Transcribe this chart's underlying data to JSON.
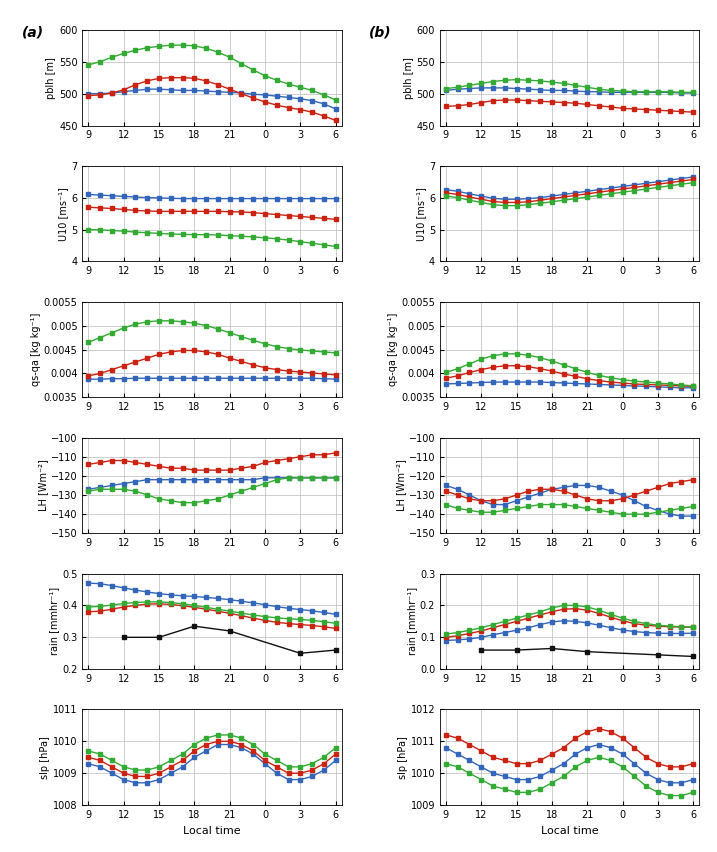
{
  "x_labels": [
    "9",
    "12",
    "15",
    "18",
    "21",
    "0",
    "3",
    "6"
  ],
  "a_pblh": {
    "CTL": [
      500,
      500,
      501,
      503,
      505,
      507,
      507,
      506,
      505,
      505,
      504,
      503,
      502,
      501,
      499,
      498,
      496,
      494,
      492,
      489,
      484,
      476
    ],
    "WO": [
      497,
      498,
      501,
      506,
      514,
      520,
      524,
      525,
      525,
      524,
      520,
      514,
      507,
      500,
      493,
      487,
      482,
      478,
      475,
      471,
      465,
      458
    ],
    "WOD": [
      545,
      550,
      557,
      563,
      568,
      572,
      574,
      576,
      576,
      575,
      571,
      565,
      557,
      547,
      537,
      528,
      521,
      515,
      510,
      505,
      498,
      490
    ],
    "ylim": [
      450,
      600
    ],
    "yticks": [
      450,
      500,
      550,
      600
    ],
    "ylabel": "pblh [m]"
  },
  "b_pblh": {
    "CTL": [
      505,
      507,
      508,
      509,
      509,
      509,
      508,
      507,
      506,
      505,
      505,
      504,
      503,
      503,
      502,
      502,
      502,
      502,
      502,
      502,
      501,
      501
    ],
    "WO": [
      480,
      481,
      483,
      486,
      489,
      490,
      490,
      489,
      488,
      487,
      486,
      485,
      483,
      481,
      479,
      477,
      476,
      475,
      474,
      473,
      472,
      471
    ],
    "WOD": [
      508,
      510,
      513,
      516,
      519,
      521,
      522,
      521,
      520,
      518,
      516,
      513,
      510,
      507,
      505,
      504,
      503,
      503,
      503,
      503,
      502,
      502
    ],
    "ylim": [
      450,
      600
    ],
    "yticks": [
      450,
      500,
      550,
      600
    ],
    "ylabel": "pblh [m]"
  },
  "a_u10": {
    "CTL": [
      6.1,
      6.08,
      6.06,
      6.04,
      6.02,
      6.0,
      5.99,
      5.98,
      5.97,
      5.97,
      5.97,
      5.97,
      5.97,
      5.97,
      5.97,
      5.97,
      5.97,
      5.97,
      5.97,
      5.97,
      5.97,
      5.97
    ],
    "WO": [
      5.7,
      5.68,
      5.66,
      5.63,
      5.6,
      5.58,
      5.57,
      5.57,
      5.57,
      5.57,
      5.57,
      5.57,
      5.56,
      5.55,
      5.53,
      5.5,
      5.47,
      5.44,
      5.41,
      5.38,
      5.35,
      5.32
    ],
    "WOD": [
      5.0,
      4.99,
      4.97,
      4.95,
      4.92,
      4.9,
      4.88,
      4.86,
      4.85,
      4.84,
      4.84,
      4.83,
      4.81,
      4.79,
      4.77,
      4.74,
      4.71,
      4.67,
      4.62,
      4.57,
      4.52,
      4.47
    ],
    "ylim": [
      4,
      7
    ],
    "yticks": [
      4,
      5,
      6,
      7
    ],
    "ylabel": "U10 [ms⁻¹]"
  },
  "b_u10": {
    "CTL": [
      6.25,
      6.2,
      6.12,
      6.05,
      5.98,
      5.95,
      5.95,
      5.97,
      6.0,
      6.05,
      6.1,
      6.15,
      6.2,
      6.25,
      6.3,
      6.35,
      6.4,
      6.45,
      6.5,
      6.55,
      6.6,
      6.65
    ],
    "WO": [
      6.15,
      6.1,
      6.02,
      5.95,
      5.88,
      5.85,
      5.85,
      5.87,
      5.92,
      5.97,
      6.02,
      6.07,
      6.12,
      6.17,
      6.22,
      6.27,
      6.32,
      6.37,
      6.42,
      6.47,
      6.52,
      6.57
    ],
    "WOD": [
      6.05,
      6.0,
      5.92,
      5.85,
      5.78,
      5.75,
      5.75,
      5.78,
      5.82,
      5.87,
      5.92,
      5.97,
      6.02,
      6.07,
      6.12,
      6.17,
      6.22,
      6.27,
      6.32,
      6.37,
      6.42,
      6.47
    ],
    "ylim": [
      4,
      7
    ],
    "yticks": [
      4,
      5,
      6,
      7
    ],
    "ylabel": "U10 [ms⁻¹]"
  },
  "a_qs": {
    "CTL": [
      0.00388,
      0.00388,
      0.00389,
      0.00389,
      0.0039,
      0.0039,
      0.0039,
      0.0039,
      0.0039,
      0.0039,
      0.0039,
      0.0039,
      0.0039,
      0.0039,
      0.0039,
      0.0039,
      0.0039,
      0.0039,
      0.0039,
      0.0039,
      0.00389,
      0.00388
    ],
    "WO": [
      0.00395,
      0.004,
      0.00408,
      0.00416,
      0.00424,
      0.00432,
      0.0044,
      0.00445,
      0.00448,
      0.00448,
      0.00445,
      0.0044,
      0.00432,
      0.00425,
      0.00418,
      0.00412,
      0.00408,
      0.00405,
      0.00403,
      0.00401,
      0.00399,
      0.00397
    ],
    "WOD": [
      0.00465,
      0.00475,
      0.00485,
      0.00495,
      0.00503,
      0.00508,
      0.0051,
      0.0051,
      0.00508,
      0.00505,
      0.005,
      0.00493,
      0.00485,
      0.00477,
      0.00469,
      0.00462,
      0.00456,
      0.00452,
      0.00449,
      0.00447,
      0.00445,
      0.00443
    ],
    "ylim": [
      0.0035,
      0.0055
    ],
    "yticks": [
      0.0035,
      0.004,
      0.0045,
      0.005,
      0.0055
    ],
    "ytick_labels": [
      "0.0035",
      "0.004",
      "0.0045",
      "0.005",
      "0.0055"
    ],
    "ylabel": "qs-qa [kg kg⁻¹]"
  },
  "b_qs": {
    "CTL": [
      0.00378,
      0.00379,
      0.0038,
      0.00381,
      0.00382,
      0.00382,
      0.00382,
      0.00382,
      0.00382,
      0.00381,
      0.0038,
      0.00379,
      0.00378,
      0.00377,
      0.00376,
      0.00375,
      0.00374,
      0.00373,
      0.00372,
      0.00371,
      0.0037,
      0.0037
    ],
    "WO": [
      0.0039,
      0.00395,
      0.00402,
      0.00408,
      0.00413,
      0.00416,
      0.00416,
      0.00414,
      0.0041,
      0.00405,
      0.00399,
      0.00394,
      0.00389,
      0.00385,
      0.00382,
      0.0038,
      0.00378,
      0.00377,
      0.00376,
      0.00375,
      0.00374,
      0.00373
    ],
    "WOD": [
      0.00402,
      0.0041,
      0.0042,
      0.0043,
      0.00437,
      0.00441,
      0.00441,
      0.00438,
      0.00433,
      0.00426,
      0.00418,
      0.0041,
      0.00402,
      0.00396,
      0.00391,
      0.00387,
      0.00384,
      0.00382,
      0.0038,
      0.00378,
      0.00376,
      0.00374
    ],
    "ylim": [
      0.0035,
      0.0055
    ],
    "yticks": [
      0.0035,
      0.004,
      0.0045,
      0.005,
      0.0055
    ],
    "ytick_labels": [
      "0.0035",
      "0.004",
      "0.0045",
      "0.005",
      "0.0055"
    ],
    "ylabel": "qs-qa [kg kg⁻¹]"
  },
  "a_lh": {
    "CTL": [
      -127,
      -126,
      -125,
      -124,
      -123,
      -122,
      -122,
      -122,
      -122,
      -122,
      -122,
      -122,
      -122,
      -122,
      -122,
      -121,
      -121,
      -121,
      -121,
      -121,
      -121,
      -121
    ],
    "WO": [
      -114,
      -113,
      -112,
      -112,
      -113,
      -114,
      -115,
      -116,
      -116,
      -117,
      -117,
      -117,
      -117,
      -116,
      -115,
      -113,
      -112,
      -111,
      -110,
      -109,
      -109,
      -108
    ],
    "WOD": [
      -128,
      -127,
      -127,
      -127,
      -128,
      -130,
      -132,
      -133,
      -134,
      -134,
      -133,
      -132,
      -130,
      -128,
      -126,
      -124,
      -122,
      -121,
      -121,
      -121,
      -121,
      -121
    ],
    "ylim": [
      -150,
      -100
    ],
    "yticks": [
      -150,
      -140,
      -130,
      -120,
      -110,
      -100
    ],
    "ylabel": "LH [Wm⁻²]"
  },
  "b_lh": {
    "CTL": [
      -125,
      -127,
      -130,
      -133,
      -135,
      -135,
      -133,
      -131,
      -129,
      -127,
      -126,
      -125,
      -125,
      -126,
      -128,
      -130,
      -133,
      -136,
      -138,
      -140,
      -141,
      -141
    ],
    "WO": [
      -128,
      -130,
      -132,
      -133,
      -133,
      -132,
      -130,
      -128,
      -127,
      -127,
      -128,
      -130,
      -132,
      -133,
      -133,
      -132,
      -130,
      -128,
      -126,
      -124,
      -123,
      -122
    ],
    "WOD": [
      -135,
      -137,
      -138,
      -139,
      -139,
      -138,
      -137,
      -136,
      -135,
      -135,
      -135,
      -136,
      -137,
      -138,
      -139,
      -140,
      -140,
      -140,
      -139,
      -138,
      -137,
      -136
    ],
    "ylim": [
      -150,
      -100
    ],
    "yticks": [
      -150,
      -140,
      -130,
      -120,
      -110,
      -100
    ],
    "ylabel": "LH [Wm⁻²]"
  },
  "a_rain": {
    "CTL": [
      0.47,
      0.468,
      0.462,
      0.455,
      0.448,
      0.442,
      0.437,
      0.433,
      0.43,
      0.428,
      0.425,
      0.422,
      0.418,
      0.413,
      0.408,
      0.402,
      0.396,
      0.391,
      0.387,
      0.383,
      0.378,
      0.372
    ],
    "WO": [
      0.38,
      0.382,
      0.388,
      0.395,
      0.4,
      0.404,
      0.405,
      0.403,
      0.399,
      0.394,
      0.388,
      0.382,
      0.375,
      0.368,
      0.36,
      0.353,
      0.347,
      0.343,
      0.34,
      0.337,
      0.333,
      0.328
    ],
    "WOD": [
      0.395,
      0.397,
      0.401,
      0.406,
      0.409,
      0.411,
      0.411,
      0.409,
      0.405,
      0.4,
      0.394,
      0.388,
      0.382,
      0.376,
      0.37,
      0.365,
      0.361,
      0.358,
      0.356,
      0.353,
      0.349,
      0.344
    ],
    "OBS_x": [
      3,
      6,
      9,
      12,
      18,
      21
    ],
    "OBS_y": [
      0.3,
      0.3,
      0.335,
      0.32,
      0.25,
      0.26
    ],
    "ylim": [
      0.2,
      0.5
    ],
    "yticks": [
      0.2,
      0.3,
      0.4,
      0.5
    ],
    "ylabel": "rain [mmhr⁻¹]"
  },
  "b_rain": {
    "CTL": [
      0.09,
      0.092,
      0.095,
      0.1,
      0.108,
      0.115,
      0.122,
      0.13,
      0.14,
      0.148,
      0.152,
      0.15,
      0.145,
      0.138,
      0.13,
      0.123,
      0.118,
      0.115,
      0.113,
      0.112,
      0.112,
      0.113
    ],
    "WO": [
      0.1,
      0.105,
      0.112,
      0.12,
      0.13,
      0.14,
      0.15,
      0.16,
      0.17,
      0.18,
      0.188,
      0.19,
      0.185,
      0.175,
      0.163,
      0.152,
      0.143,
      0.138,
      0.135,
      0.133,
      0.132,
      0.132
    ],
    "WOD": [
      0.11,
      0.115,
      0.122,
      0.13,
      0.14,
      0.15,
      0.16,
      0.17,
      0.18,
      0.192,
      0.2,
      0.2,
      0.195,
      0.185,
      0.172,
      0.16,
      0.15,
      0.143,
      0.138,
      0.135,
      0.133,
      0.132
    ],
    "OBS_x": [
      3,
      6,
      9,
      12,
      18,
      21
    ],
    "OBS_y": [
      0.06,
      0.06,
      0.065,
      0.055,
      0.045,
      0.04
    ],
    "ylim": [
      0.0,
      0.3
    ],
    "yticks": [
      0.0,
      0.1,
      0.2,
      0.3
    ],
    "ylabel": "rain [mmhr⁻¹]"
  },
  "a_slp": {
    "CTL": [
      1009.3,
      1009.2,
      1009.0,
      1008.8,
      1008.7,
      1008.7,
      1008.8,
      1009.0,
      1009.2,
      1009.5,
      1009.7,
      1009.9,
      1009.9,
      1009.8,
      1009.6,
      1009.3,
      1009.0,
      1008.8,
      1008.8,
      1008.9,
      1009.1,
      1009.4
    ],
    "WO": [
      1009.5,
      1009.4,
      1009.2,
      1009.0,
      1008.9,
      1008.9,
      1009.0,
      1009.2,
      1009.4,
      1009.7,
      1009.9,
      1010.0,
      1010.0,
      1009.9,
      1009.7,
      1009.4,
      1009.2,
      1009.0,
      1009.0,
      1009.1,
      1009.3,
      1009.6
    ],
    "WOD": [
      1009.7,
      1009.6,
      1009.4,
      1009.2,
      1009.1,
      1009.1,
      1009.2,
      1009.4,
      1009.6,
      1009.9,
      1010.1,
      1010.2,
      1010.2,
      1010.1,
      1009.9,
      1009.6,
      1009.4,
      1009.2,
      1009.2,
      1009.3,
      1009.5,
      1009.8
    ],
    "ylim": [
      1008,
      1011
    ],
    "yticks": [
      1008,
      1009,
      1010,
      1011
    ],
    "ylabel": "slp [hPa]"
  },
  "b_slp": {
    "CTL": [
      1010.8,
      1010.6,
      1010.4,
      1010.2,
      1010.0,
      1009.9,
      1009.8,
      1009.8,
      1009.9,
      1010.1,
      1010.3,
      1010.6,
      1010.8,
      1010.9,
      1010.8,
      1010.6,
      1010.3,
      1010.0,
      1009.8,
      1009.7,
      1009.7,
      1009.8
    ],
    "WO": [
      1011.2,
      1011.1,
      1010.9,
      1010.7,
      1010.5,
      1010.4,
      1010.3,
      1010.3,
      1010.4,
      1010.6,
      1010.8,
      1011.1,
      1011.3,
      1011.4,
      1011.3,
      1011.1,
      1010.8,
      1010.5,
      1010.3,
      1010.2,
      1010.2,
      1010.3
    ],
    "WOD": [
      1010.3,
      1010.2,
      1010.0,
      1009.8,
      1009.6,
      1009.5,
      1009.4,
      1009.4,
      1009.5,
      1009.7,
      1009.9,
      1010.2,
      1010.4,
      1010.5,
      1010.4,
      1010.2,
      1009.9,
      1009.6,
      1009.4,
      1009.3,
      1009.3,
      1009.4
    ],
    "ylim": [
      1009,
      1012
    ],
    "yticks": [
      1009,
      1010,
      1011,
      1012
    ],
    "ylabel": "slp [hPa]"
  },
  "colors": {
    "CTL": "#3366BB",
    "WO": "#CC2211",
    "WOD": "#33AA33",
    "OBS": "#111111"
  },
  "marker": "s",
  "markersize": 2.5,
  "linewidth": 1.0,
  "panel_a_label": "(a)",
  "panel_b_label": "(b)",
  "xlabel": "Local time",
  "tick_fontsize": 7,
  "label_fontsize": 7,
  "panel_label_fontsize": 10
}
